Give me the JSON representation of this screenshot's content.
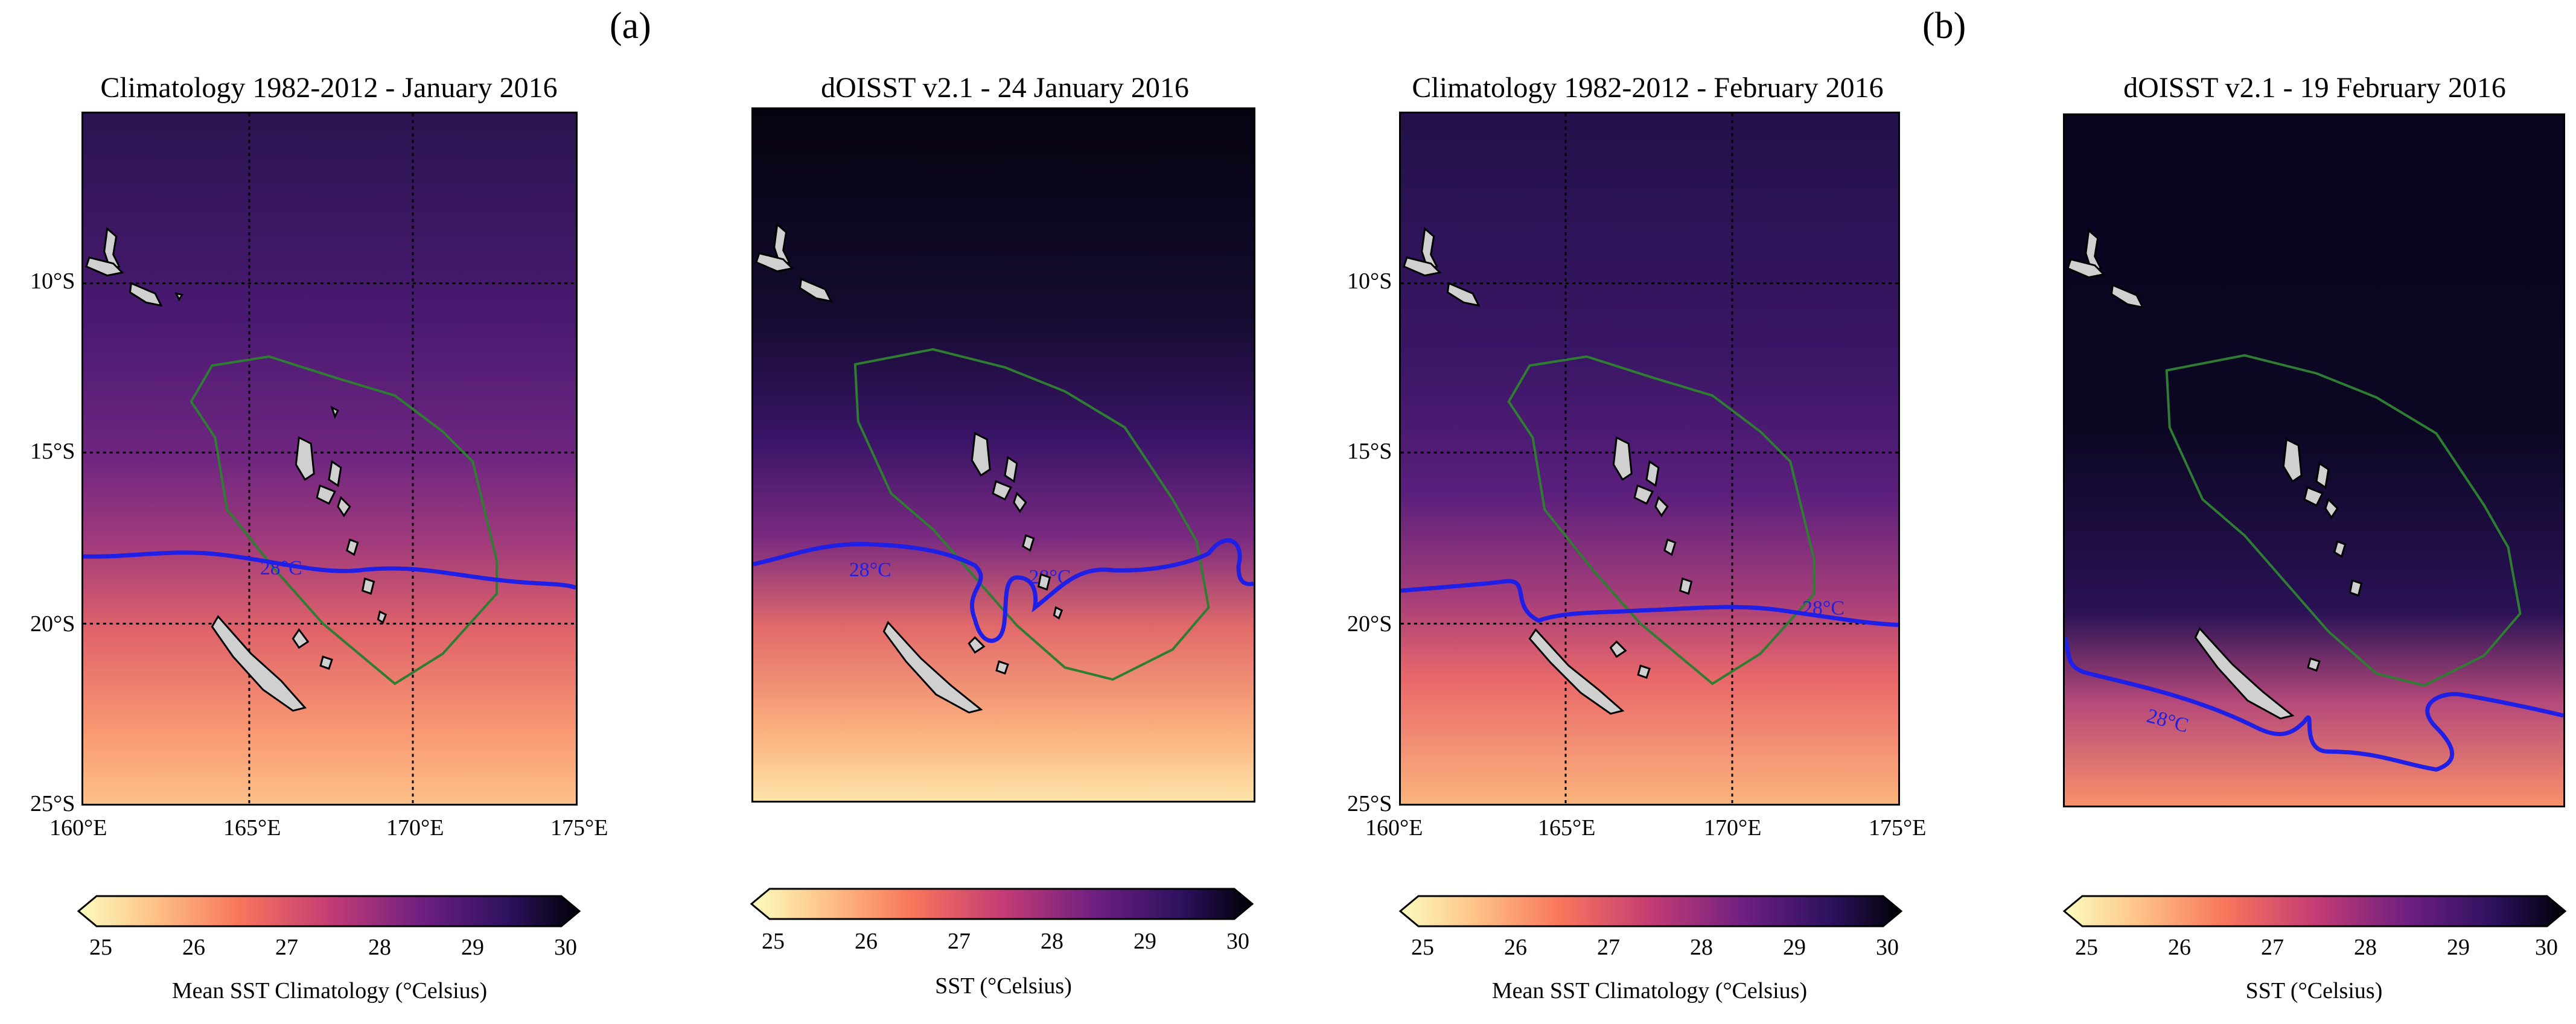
{
  "panel_labels": {
    "a": "(a)",
    "b": "(b)"
  },
  "colors": {
    "contour_28": "#1f1fe6",
    "eez_outline": "#2e7d32",
    "land": "#d0d0d0",
    "grid": "#000000"
  },
  "maps": [
    {
      "title": "Climatology 1982-2012 - January 2016",
      "lat_labels": [
        "10°S",
        "15°S",
        "20°S",
        "25°S"
      ],
      "lon_labels": [
        "160°E",
        "165°E",
        "170°E",
        "175°E"
      ],
      "contour_label": "28°C",
      "colorbar": {
        "ticks": [
          "25",
          "26",
          "27",
          "28",
          "29",
          "30"
        ],
        "label": "Mean SST Climatology (°Celsius)"
      }
    },
    {
      "title": "dOISST v2.1 - 24 January 2016",
      "contour_labels": [
        "28°C",
        "28°C"
      ],
      "colorbar": {
        "ticks": [
          "25",
          "26",
          "27",
          "28",
          "29",
          "30"
        ],
        "label": "SST (°Celsius)"
      }
    },
    {
      "title": "Climatology 1982-2012 - February 2016",
      "lat_labels": [
        "10°S",
        "15°S",
        "20°S",
        "25°S"
      ],
      "lon_labels": [
        "160°E",
        "165°E",
        "170°E",
        "175°E"
      ],
      "contour_label": "28°C",
      "colorbar": {
        "ticks": [
          "25",
          "26",
          "27",
          "28",
          "29",
          "30"
        ],
        "label": "Mean SST Climatology (°Celsius)"
      }
    },
    {
      "title": "dOISST v2.1 - 19 February 2016",
      "contour_label": "28°C",
      "colorbar": {
        "ticks": [
          "25",
          "26",
          "27",
          "28",
          "29",
          "30"
        ],
        "label": "SST (°Celsius)"
      }
    }
  ]
}
